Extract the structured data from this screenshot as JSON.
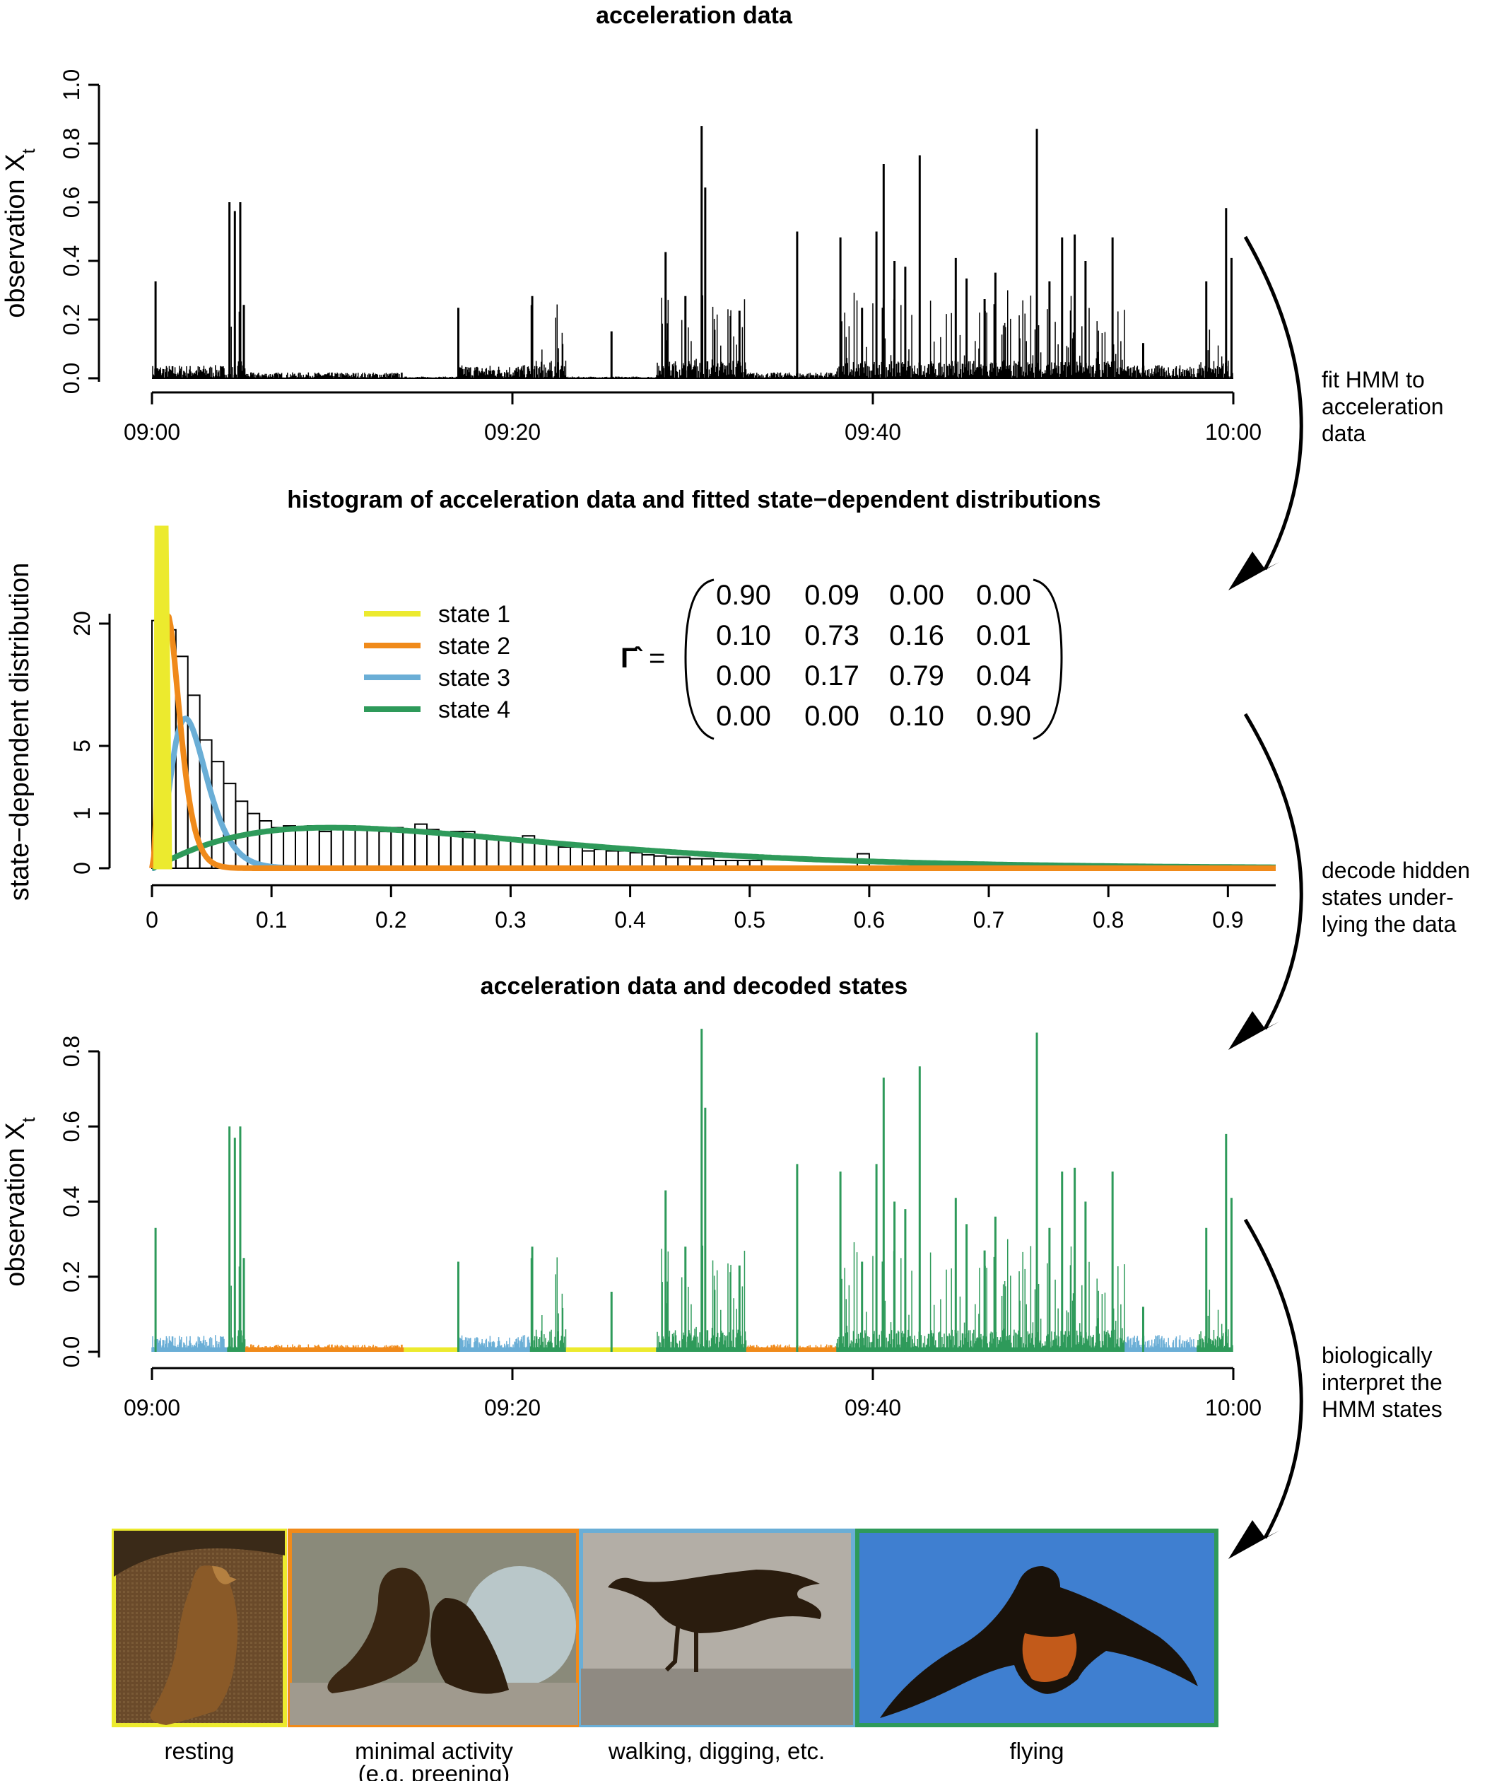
{
  "colors": {
    "state1": "#ecea2e",
    "state2": "#f08a1a",
    "state3": "#6aaed6",
    "state4": "#2e9a5a",
    "axis": "#000000"
  },
  "panel1": {
    "title": "acceleration data",
    "ylabel": "observation X",
    "ylabel_sub": "t",
    "yticks": [
      "0.0",
      "0.2",
      "0.4",
      "0.6",
      "0.8",
      "1.0"
    ],
    "xticks": [
      "09:00",
      "09:20",
      "09:40",
      "10:00"
    ]
  },
  "panel2": {
    "title": "histogram of acceleration data and fitted state−dependent distributions",
    "ylabel": "state−dependent distribution",
    "yticks": [
      "0",
      "1",
      "5",
      "20"
    ],
    "xticks": [
      "0",
      "0.1",
      "0.2",
      "0.3",
      "0.4",
      "0.5",
      "0.6",
      "0.7",
      "0.8",
      "0.9"
    ],
    "legend": [
      "state 1",
      "state 2",
      "state 3",
      "state 4"
    ],
    "gamma_symbol": "Γ̂",
    "equals": "=",
    "matrix": [
      [
        "0.90",
        "0.09",
        "0.00",
        "0.00"
      ],
      [
        "0.10",
        "0.73",
        "0.16",
        "0.01"
      ],
      [
        "0.00",
        "0.17",
        "0.79",
        "0.04"
      ],
      [
        "0.00",
        "0.00",
        "0.10",
        "0.90"
      ]
    ]
  },
  "panel3": {
    "title": "acceleration data and decoded states",
    "ylabel": "observation X",
    "ylabel_sub": "t",
    "yticks": [
      "0.0",
      "0.2",
      "0.4",
      "0.6",
      "0.8"
    ],
    "xticks": [
      "09:00",
      "09:20",
      "09:40",
      "10:00"
    ]
  },
  "arrows": [
    [
      "fit HMM to",
      "acceleration",
      "data"
    ],
    [
      "decode hidden",
      "states under-",
      "lying the data"
    ],
    [
      "biologically",
      "interpret the",
      "HMM states"
    ]
  ],
  "photos": {
    "captions": [
      [
        "resting"
      ],
      [
        "minimal activity",
        "(e.g. preening)"
      ],
      [
        "walking, digging, etc."
      ],
      [
        "flying"
      ]
    ]
  },
  "chart_data": [
    {
      "type": "line",
      "title": "acceleration data",
      "ylabel": "observation X_t",
      "xlabel": "",
      "ylim": [
        0,
        1.0
      ],
      "x_range": [
        "09:00",
        "10:00"
      ],
      "peaks": [
        {
          "t": 0.2,
          "y": 0.33
        },
        {
          "t": 4.3,
          "y": 0.6
        },
        {
          "t": 4.6,
          "y": 0.57
        },
        {
          "t": 4.9,
          "y": 0.6
        },
        {
          "t": 5.1,
          "y": 0.25
        },
        {
          "t": 17.0,
          "y": 0.24
        },
        {
          "t": 21.1,
          "y": 0.28
        },
        {
          "t": 25.5,
          "y": 0.16
        },
        {
          "t": 28.5,
          "y": 0.43
        },
        {
          "t": 29.6,
          "y": 0.28
        },
        {
          "t": 30.5,
          "y": 0.86
        },
        {
          "t": 30.7,
          "y": 0.65
        },
        {
          "t": 32.6,
          "y": 0.23
        },
        {
          "t": 35.8,
          "y": 0.5
        },
        {
          "t": 38.2,
          "y": 0.48
        },
        {
          "t": 39.4,
          "y": 0.24
        },
        {
          "t": 40.2,
          "y": 0.5
        },
        {
          "t": 40.6,
          "y": 0.73
        },
        {
          "t": 41.2,
          "y": 0.4
        },
        {
          "t": 41.8,
          "y": 0.38
        },
        {
          "t": 42.6,
          "y": 0.76
        },
        {
          "t": 44.6,
          "y": 0.41
        },
        {
          "t": 45.2,
          "y": 0.34
        },
        {
          "t": 46.2,
          "y": 0.27
        },
        {
          "t": 46.8,
          "y": 0.36
        },
        {
          "t": 49.1,
          "y": 0.85
        },
        {
          "t": 49.8,
          "y": 0.33
        },
        {
          "t": 50.5,
          "y": 0.48
        },
        {
          "t": 51.2,
          "y": 0.49
        },
        {
          "t": 51.8,
          "y": 0.4
        },
        {
          "t": 53.3,
          "y": 0.48
        },
        {
          "t": 55.0,
          "y": 0.12
        },
        {
          "t": 58.5,
          "y": 0.33
        },
        {
          "t": 59.6,
          "y": 0.58
        },
        {
          "t": 59.9,
          "y": 0.41
        }
      ]
    },
    {
      "type": "bar",
      "title": "histogram of acceleration data and fitted state−dependent distributions",
      "ylabel": "state−dependent distribution",
      "xlabel": "",
      "xlim": [
        0,
        0.94
      ],
      "y_scale": "square-root-like (ticks 0, 1, 5, 20)",
      "bin_width": 0.01,
      "series": [
        {
          "name": "state 1",
          "peak_x": 0.008
        },
        {
          "name": "state 2",
          "peak_x": 0.013,
          "peak_y": 21.5
        },
        {
          "name": "state 3",
          "peak_x": 0.028,
          "peak_y": 7.5
        },
        {
          "name": "state 4",
          "peak_x": 0.15,
          "peak_y": 0.55
        }
      ],
      "histogram": [
        [
          0.0,
          20.5
        ],
        [
          0.01,
          19.0
        ],
        [
          0.02,
          15.0
        ],
        [
          0.03,
          10.0
        ],
        [
          0.04,
          5.5
        ],
        [
          0.05,
          3.8
        ],
        [
          0.06,
          2.4
        ],
        [
          0.07,
          1.5
        ],
        [
          0.08,
          1.0
        ],
        [
          0.09,
          0.75
        ],
        [
          0.1,
          0.55
        ],
        [
          0.11,
          0.6
        ],
        [
          0.12,
          0.55
        ],
        [
          0.13,
          0.6
        ],
        [
          0.14,
          0.45
        ],
        [
          0.15,
          0.55
        ],
        [
          0.16,
          0.6
        ],
        [
          0.17,
          0.5
        ],
        [
          0.18,
          0.55
        ],
        [
          0.19,
          0.45
        ],
        [
          0.2,
          0.55
        ],
        [
          0.21,
          0.5
        ],
        [
          0.22,
          0.65
        ],
        [
          0.23,
          0.5
        ],
        [
          0.24,
          0.4
        ],
        [
          0.25,
          0.45
        ],
        [
          0.26,
          0.45
        ],
        [
          0.27,
          0.35
        ],
        [
          0.28,
          0.3
        ],
        [
          0.29,
          0.3
        ],
        [
          0.3,
          0.25
        ],
        [
          0.31,
          0.35
        ],
        [
          0.32,
          0.25
        ],
        [
          0.33,
          0.2
        ],
        [
          0.34,
          0.15
        ],
        [
          0.35,
          0.15
        ],
        [
          0.36,
          0.1
        ],
        [
          0.37,
          0.12
        ],
        [
          0.38,
          0.1
        ],
        [
          0.39,
          0.1
        ],
        [
          0.4,
          0.08
        ],
        [
          0.41,
          0.06
        ],
        [
          0.42,
          0.05
        ],
        [
          0.43,
          0.04
        ],
        [
          0.44,
          0.04
        ],
        [
          0.45,
          0.03
        ],
        [
          0.46,
          0.03
        ],
        [
          0.47,
          0.02
        ],
        [
          0.48,
          0.02
        ],
        [
          0.49,
          0.02
        ],
        [
          0.5,
          0.02
        ],
        [
          0.59,
          0.07
        ]
      ]
    },
    {
      "type": "line",
      "title": "acceleration data and decoded states",
      "ylabel": "observation X_t",
      "xlabel": "",
      "ylim": [
        0,
        0.85
      ],
      "x_range": [
        "09:00",
        "10:00"
      ],
      "state_segments": [
        {
          "start": 0,
          "end": 4.2,
          "state": 3
        },
        {
          "start": 4.2,
          "end": 5.2,
          "state": 4
        },
        {
          "start": 5.2,
          "end": 14,
          "state": 2
        },
        {
          "start": 14,
          "end": 17,
          "state": 1
        },
        {
          "start": 17,
          "end": 21,
          "state": 3
        },
        {
          "start": 21,
          "end": 23,
          "state": 4
        },
        {
          "start": 23,
          "end": 28,
          "state": 1
        },
        {
          "start": 28,
          "end": 33,
          "state": 4
        },
        {
          "start": 33,
          "end": 38,
          "state": 2
        },
        {
          "start": 38,
          "end": 54,
          "state": 4
        },
        {
          "start": 54,
          "end": 58,
          "state": 3
        },
        {
          "start": 58,
          "end": 60,
          "state": 4
        }
      ]
    }
  ]
}
